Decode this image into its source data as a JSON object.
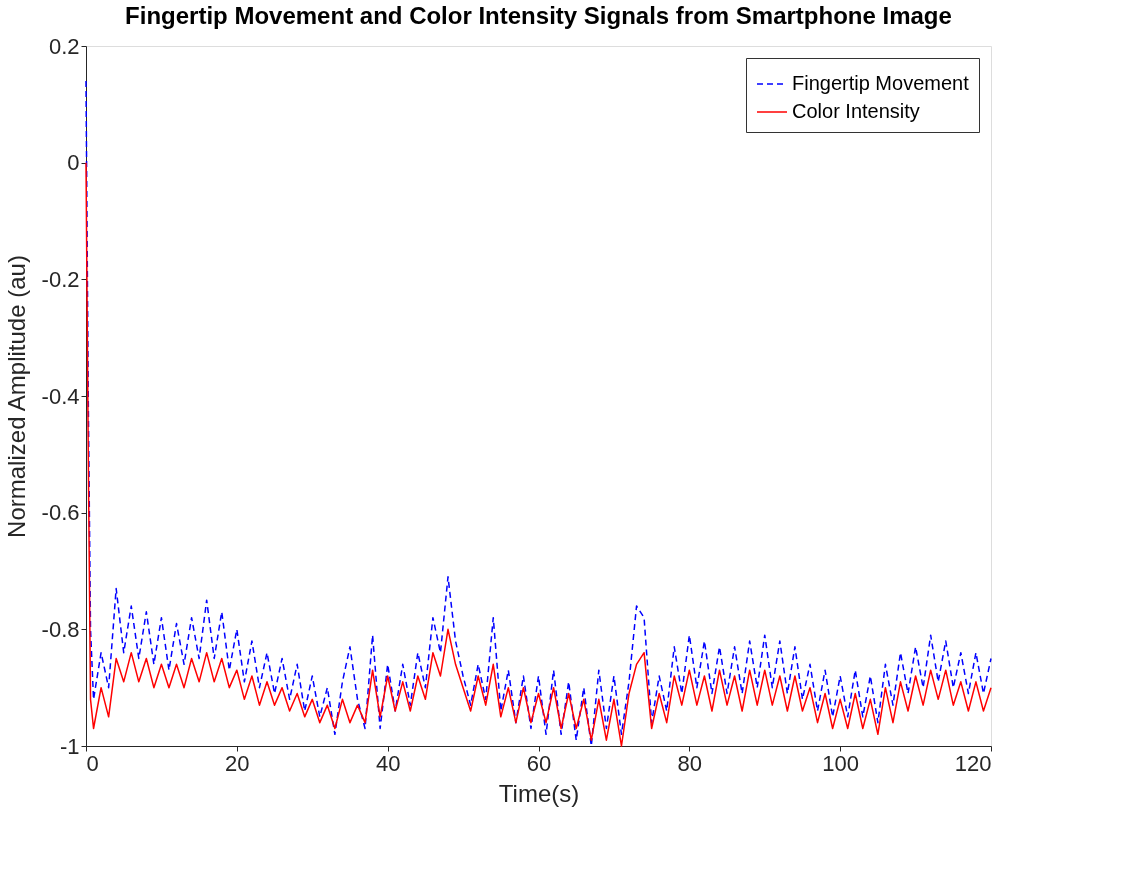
{
  "chart_data": {
    "type": "line",
    "title": "Fingertip Movement and Color Intensity Signals from Smartphone Image",
    "xlabel": "Time(s)",
    "ylabel": "Normalized Amplitude (au)",
    "x": [
      0,
      0.3,
      0.6,
      1,
      2,
      3,
      4,
      5,
      6,
      7,
      8,
      9,
      10,
      11,
      12,
      13,
      14,
      15,
      16,
      17,
      18,
      19,
      20,
      21,
      22,
      23,
      24,
      25,
      26,
      27,
      28,
      29,
      30,
      31,
      32,
      33,
      34,
      35,
      36,
      37,
      38,
      39,
      40,
      41,
      42,
      43,
      44,
      45,
      46,
      47,
      48,
      49,
      50,
      51,
      52,
      53,
      54,
      55,
      56,
      57,
      58,
      59,
      60,
      61,
      62,
      63,
      64,
      65,
      66,
      67,
      68,
      69,
      70,
      71,
      72,
      73,
      74,
      75,
      76,
      77,
      78,
      79,
      80,
      81,
      82,
      83,
      84,
      85,
      86,
      87,
      88,
      89,
      90,
      91,
      92,
      93,
      94,
      95,
      96,
      97,
      98,
      99,
      100,
      101,
      102,
      103,
      104,
      105,
      106,
      107,
      108,
      109,
      110,
      111,
      112,
      113,
      114,
      115,
      116,
      117,
      118,
      119,
      120
    ],
    "series": [
      {
        "name": "Fingertip Movement",
        "color": "#0000ff",
        "line_style": "dashed",
        "values": [
          0.14,
          -0.4,
          -0.8,
          -0.92,
          -0.84,
          -0.9,
          -0.73,
          -0.84,
          -0.76,
          -0.85,
          -0.77,
          -0.86,
          -0.78,
          -0.87,
          -0.79,
          -0.86,
          -0.78,
          -0.85,
          -0.75,
          -0.85,
          -0.77,
          -0.87,
          -0.8,
          -0.89,
          -0.82,
          -0.9,
          -0.84,
          -0.91,
          -0.85,
          -0.92,
          -0.86,
          -0.94,
          -0.88,
          -0.95,
          -0.9,
          -0.98,
          -0.89,
          -0.83,
          -0.92,
          -0.97,
          -0.81,
          -0.97,
          -0.86,
          -0.94,
          -0.86,
          -0.93,
          -0.84,
          -0.9,
          -0.78,
          -0.84,
          -0.71,
          -0.82,
          -0.88,
          -0.93,
          -0.86,
          -0.92,
          -0.78,
          -0.94,
          -0.87,
          -0.96,
          -0.88,
          -0.97,
          -0.88,
          -0.98,
          -0.87,
          -0.98,
          -0.89,
          -0.99,
          -0.9,
          -1.0,
          -0.87,
          -0.97,
          -0.88,
          -0.98,
          -0.89,
          -0.76,
          -0.78,
          -0.96,
          -0.88,
          -0.94,
          -0.83,
          -0.91,
          -0.81,
          -0.9,
          -0.82,
          -0.91,
          -0.83,
          -0.91,
          -0.83,
          -0.91,
          -0.82,
          -0.9,
          -0.81,
          -0.9,
          -0.82,
          -0.91,
          -0.83,
          -0.92,
          -0.86,
          -0.94,
          -0.87,
          -0.95,
          -0.88,
          -0.95,
          -0.87,
          -0.95,
          -0.88,
          -0.96,
          -0.86,
          -0.93,
          -0.84,
          -0.91,
          -0.83,
          -0.9,
          -0.81,
          -0.89,
          -0.82,
          -0.9,
          -0.84,
          -0.91,
          -0.84,
          -0.91,
          -0.85
        ]
      },
      {
        "name": "Color Intensity",
        "color": "#ff0000",
        "line_style": "solid",
        "values": [
          0.0,
          -0.5,
          -0.92,
          -0.97,
          -0.9,
          -0.95,
          -0.85,
          -0.89,
          -0.84,
          -0.89,
          -0.85,
          -0.9,
          -0.86,
          -0.9,
          -0.86,
          -0.9,
          -0.85,
          -0.89,
          -0.84,
          -0.89,
          -0.85,
          -0.9,
          -0.87,
          -0.92,
          -0.88,
          -0.93,
          -0.89,
          -0.93,
          -0.9,
          -0.94,
          -0.91,
          -0.95,
          -0.92,
          -0.96,
          -0.93,
          -0.97,
          -0.92,
          -0.96,
          -0.93,
          -0.96,
          -0.87,
          -0.95,
          -0.88,
          -0.94,
          -0.89,
          -0.94,
          -0.88,
          -0.92,
          -0.84,
          -0.88,
          -0.8,
          -0.86,
          -0.9,
          -0.94,
          -0.88,
          -0.93,
          -0.86,
          -0.95,
          -0.9,
          -0.96,
          -0.9,
          -0.96,
          -0.91,
          -0.96,
          -0.9,
          -0.97,
          -0.91,
          -0.97,
          -0.92,
          -0.99,
          -0.92,
          -0.99,
          -0.92,
          -1.0,
          -0.91,
          -0.86,
          -0.84,
          -0.97,
          -0.91,
          -0.96,
          -0.88,
          -0.93,
          -0.87,
          -0.93,
          -0.88,
          -0.94,
          -0.87,
          -0.93,
          -0.88,
          -0.94,
          -0.87,
          -0.93,
          -0.87,
          -0.93,
          -0.88,
          -0.94,
          -0.88,
          -0.94,
          -0.9,
          -0.96,
          -0.91,
          -0.97,
          -0.92,
          -0.97,
          -0.91,
          -0.97,
          -0.92,
          -0.98,
          -0.9,
          -0.96,
          -0.89,
          -0.94,
          -0.88,
          -0.93,
          -0.87,
          -0.92,
          -0.87,
          -0.93,
          -0.89,
          -0.94,
          -0.89,
          -0.94,
          -0.9
        ]
      }
    ],
    "xlim": [
      0,
      120
    ],
    "xticks": [
      0,
      20,
      40,
      60,
      80,
      100,
      120
    ],
    "ylim": [
      -1,
      0.2
    ],
    "yticks": [
      -1,
      -0.8,
      -0.6,
      -0.4,
      -0.2,
      0,
      0.2
    ],
    "grid": false,
    "legend": "top right",
    "marker": "none"
  }
}
